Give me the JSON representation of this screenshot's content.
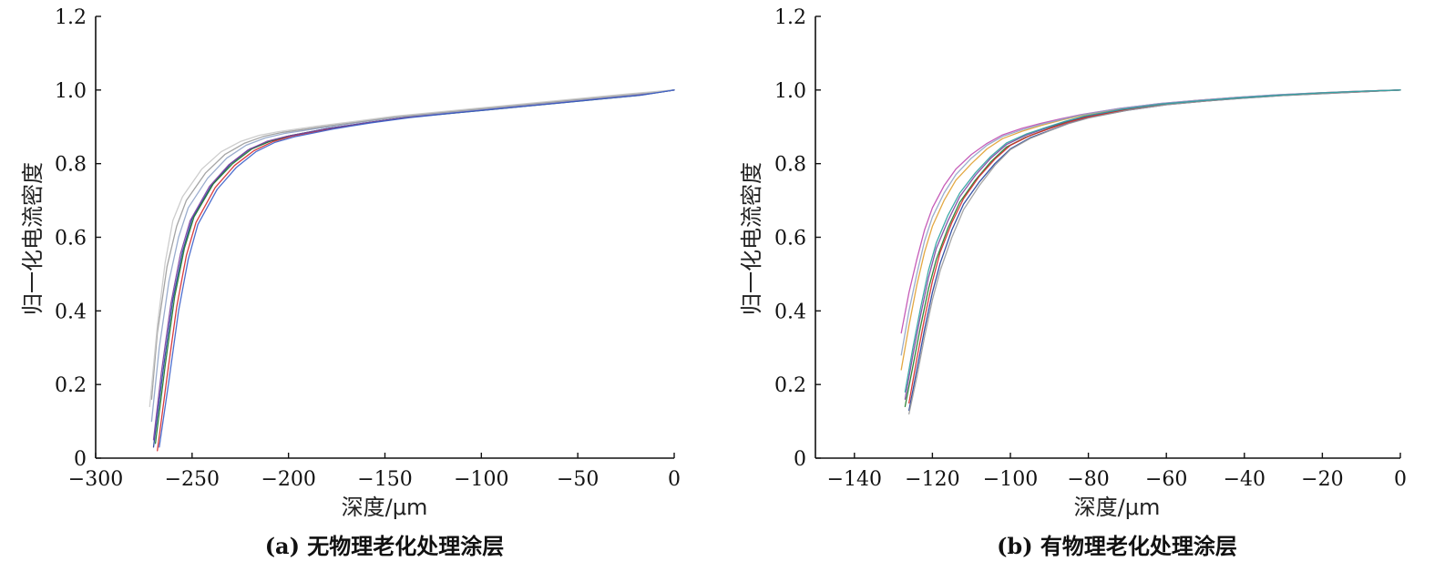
{
  "chart_data": [
    {
      "type": "line",
      "panel_id": "a",
      "caption": "(a) 无物理老化处理涂层",
      "title": "",
      "xlabel": "深度/μm",
      "ylabel": "归一化电流密度",
      "xlim": [
        -300,
        0
      ],
      "ylim": [
        0,
        1.2
      ],
      "xticks": [
        -300,
        -250,
        -200,
        -150,
        -100,
        -50,
        0
      ],
      "xtick_labels": [
        "−300",
        "−250",
        "−200",
        "−150",
        "−100",
        "−50",
        "0"
      ],
      "yticks": [
        0,
        0.2,
        0.4,
        0.6,
        0.8,
        1.0,
        1.2
      ],
      "ytick_labels": [
        "0",
        "0.2",
        "0.4",
        "0.6",
        "0.8",
        "1.0",
        "1.2"
      ],
      "grid": false,
      "legend": "none",
      "series": [
        {
          "color": "#1f3f9a",
          "x": [
            -270,
            -265,
            -260,
            -255,
            -250,
            -240,
            -230,
            -220,
            -210,
            -200,
            -180,
            -160,
            -140,
            -120,
            -100,
            -80,
            -60,
            -40,
            -20,
            0
          ],
          "y": [
            0.03,
            0.24,
            0.43,
            0.56,
            0.65,
            0.74,
            0.8,
            0.84,
            0.86,
            0.875,
            0.895,
            0.91,
            0.925,
            0.935,
            0.945,
            0.955,
            0.965,
            0.975,
            0.985,
            1.0
          ]
        },
        {
          "color": "#d62728",
          "x": [
            -268,
            -263,
            -258,
            -253,
            -248,
            -238,
            -228,
            -218,
            -208,
            -198,
            -178,
            -158,
            -138,
            -118,
            -98,
            -78,
            -58,
            -38,
            -18,
            0
          ],
          "y": [
            0.02,
            0.22,
            0.41,
            0.55,
            0.64,
            0.735,
            0.795,
            0.835,
            0.86,
            0.875,
            0.895,
            0.912,
            0.926,
            0.936,
            0.946,
            0.956,
            0.966,
            0.976,
            0.986,
            1.0
          ]
        },
        {
          "color": "#1b7a2a",
          "x": [
            -269,
            -264,
            -259,
            -254,
            -249,
            -239,
            -229,
            -219,
            -209,
            -199,
            -179,
            -159,
            -139,
            -119,
            -99,
            -79,
            -59,
            -39,
            -19,
            0
          ],
          "y": [
            0.04,
            0.25,
            0.44,
            0.57,
            0.655,
            0.745,
            0.8,
            0.84,
            0.862,
            0.876,
            0.896,
            0.911,
            0.925,
            0.935,
            0.945,
            0.955,
            0.965,
            0.975,
            0.985,
            1.0
          ]
        },
        {
          "color": "#7b3fa0",
          "x": [
            -270,
            -266,
            -261,
            -256,
            -251,
            -241,
            -231,
            -221,
            -211,
            -201,
            -181,
            -161,
            -141,
            -121,
            -101,
            -81,
            -61,
            -41,
            -21,
            0
          ],
          "y": [
            0.05,
            0.23,
            0.42,
            0.555,
            0.645,
            0.738,
            0.797,
            0.837,
            0.861,
            0.874,
            0.894,
            0.91,
            0.924,
            0.935,
            0.945,
            0.955,
            0.965,
            0.975,
            0.985,
            1.0
          ]
        },
        {
          "color": "#8fa3c8",
          "x": [
            -271,
            -267,
            -262,
            -257,
            -252,
            -242,
            -232,
            -222,
            -212,
            -202,
            -182,
            -162,
            -142,
            -122,
            -102,
            -82,
            -62,
            -42,
            -22,
            0
          ],
          "y": [
            0.1,
            0.3,
            0.48,
            0.6,
            0.68,
            0.76,
            0.815,
            0.85,
            0.87,
            0.882,
            0.898,
            0.913,
            0.927,
            0.937,
            0.947,
            0.957,
            0.967,
            0.977,
            0.987,
            1.0
          ]
        },
        {
          "color": "#9a9a9a",
          "x": [
            -271,
            -268,
            -263,
            -258,
            -253,
            -243,
            -233,
            -223,
            -213,
            -203,
            -183,
            -163,
            -143,
            -123,
            -103,
            -83,
            -63,
            -43,
            -23,
            0
          ],
          "y": [
            0.16,
            0.34,
            0.52,
            0.63,
            0.7,
            0.775,
            0.825,
            0.855,
            0.874,
            0.885,
            0.9,
            0.914,
            0.928,
            0.938,
            0.948,
            0.958,
            0.968,
            0.978,
            0.988,
            1.0
          ]
        },
        {
          "color": "#c8c8c8",
          "x": [
            -272,
            -268,
            -264,
            -260,
            -255,
            -245,
            -235,
            -225,
            -215,
            -205,
            -185,
            -165,
            -145,
            -125,
            -105,
            -85,
            -65,
            -45,
            -25,
            0
          ],
          "y": [
            0.14,
            0.36,
            0.53,
            0.645,
            0.71,
            0.785,
            0.832,
            0.86,
            0.877,
            0.887,
            0.902,
            0.915,
            0.929,
            0.939,
            0.949,
            0.959,
            0.969,
            0.979,
            0.989,
            1.0
          ]
        },
        {
          "color": "#3a5ec9",
          "x": [
            -267,
            -262,
            -257,
            -252,
            -247,
            -237,
            -227,
            -217,
            -207,
            -197,
            -177,
            -157,
            -137,
            -117,
            -97,
            -77,
            -57,
            -37,
            -17,
            0
          ],
          "y": [
            0.03,
            0.21,
            0.4,
            0.54,
            0.635,
            0.73,
            0.79,
            0.832,
            0.858,
            0.873,
            0.894,
            0.911,
            0.925,
            0.936,
            0.946,
            0.956,
            0.966,
            0.976,
            0.986,
            1.0
          ]
        }
      ]
    },
    {
      "type": "line",
      "panel_id": "b",
      "caption": "(b) 有物理老化处理涂层",
      "title": "",
      "xlabel": "深度/μm",
      "ylabel": "归一化电流密度",
      "xlim": [
        -150,
        0
      ],
      "ylim": [
        0,
        1.2
      ],
      "xticks": [
        -140,
        -120,
        -100,
        -80,
        -60,
        -40,
        -20,
        0
      ],
      "xtick_labels": [
        "−140",
        "−120",
        "−100",
        "−80",
        "−60",
        "−40",
        "−20",
        "0"
      ],
      "yticks": [
        0,
        0.2,
        0.4,
        0.6,
        0.8,
        1.0,
        1.2
      ],
      "ytick_labels": [
        "0",
        "0.2",
        "0.4",
        "0.6",
        "0.8",
        "1.0",
        "1.2"
      ],
      "grid": false,
      "legend": "none",
      "series": [
        {
          "color": "#1f3f9a",
          "x": [
            -126,
            -124,
            -122,
            -120,
            -118,
            -115,
            -112,
            -108,
            -104,
            -100,
            -95,
            -90,
            -85,
            -80,
            -70,
            -60,
            -50,
            -40,
            -30,
            -20,
            -10,
            0
          ],
          "y": [
            0.13,
            0.24,
            0.35,
            0.45,
            0.53,
            0.62,
            0.69,
            0.75,
            0.8,
            0.84,
            0.87,
            0.89,
            0.91,
            0.925,
            0.945,
            0.96,
            0.97,
            0.978,
            0.985,
            0.99,
            0.995,
            1.0
          ]
        },
        {
          "color": "#1b7a2a",
          "x": [
            -127,
            -125,
            -123,
            -121,
            -119,
            -116,
            -113,
            -109,
            -105,
            -101,
            -96,
            -91,
            -86,
            -81,
            -71,
            -61,
            -51,
            -41,
            -31,
            -21,
            -11,
            0
          ],
          "y": [
            0.14,
            0.25,
            0.36,
            0.46,
            0.54,
            0.625,
            0.695,
            0.755,
            0.805,
            0.845,
            0.872,
            0.892,
            0.912,
            0.926,
            0.946,
            0.961,
            0.971,
            0.978,
            0.985,
            0.99,
            0.996,
            1.0
          ]
        },
        {
          "color": "#d62728",
          "x": [
            -126,
            -124,
            -122,
            -120,
            -118,
            -115,
            -112,
            -108,
            -104,
            -100,
            -95,
            -90,
            -85,
            -80,
            -70,
            -60,
            -50,
            -40,
            -30,
            -20,
            -10,
            0
          ],
          "y": [
            0.15,
            0.27,
            0.38,
            0.48,
            0.56,
            0.64,
            0.705,
            0.765,
            0.812,
            0.85,
            0.876,
            0.895,
            0.913,
            0.927,
            0.947,
            0.961,
            0.97,
            0.979,
            0.986,
            0.991,
            0.995,
            1.0
          ]
        },
        {
          "color": "#7b3fa0",
          "x": [
            -127,
            -125,
            -123,
            -121,
            -119,
            -116,
            -113,
            -109,
            -105,
            -101,
            -96,
            -91,
            -86,
            -81,
            -71,
            -61,
            -51,
            -41,
            -31,
            -21,
            -11,
            0
          ],
          "y": [
            0.16,
            0.28,
            0.39,
            0.49,
            0.57,
            0.645,
            0.71,
            0.768,
            0.815,
            0.852,
            0.877,
            0.896,
            0.914,
            0.928,
            0.948,
            0.962,
            0.971,
            0.979,
            0.986,
            0.992,
            0.996,
            1.0
          ]
        },
        {
          "color": "#e0a030",
          "x": [
            -128,
            -126,
            -124,
            -122,
            -120,
            -117,
            -114,
            -110,
            -106,
            -102,
            -97,
            -92,
            -87,
            -82,
            -72,
            -62,
            -52,
            -42,
            -32,
            -22,
            -12,
            0
          ],
          "y": [
            0.24,
            0.36,
            0.47,
            0.56,
            0.63,
            0.7,
            0.755,
            0.8,
            0.84,
            0.868,
            0.888,
            0.904,
            0.918,
            0.93,
            0.949,
            0.962,
            0.972,
            0.98,
            0.986,
            0.992,
            0.996,
            1.0
          ]
        },
        {
          "color": "#c04ab0",
          "x": [
            -128,
            -126,
            -124,
            -122,
            -120,
            -117,
            -114,
            -110,
            -106,
            -102,
            -97,
            -92,
            -87,
            -82,
            -72,
            -62,
            -52,
            -42,
            -32,
            -22,
            -12,
            0
          ],
          "y": [
            0.34,
            0.45,
            0.54,
            0.62,
            0.68,
            0.74,
            0.785,
            0.825,
            0.855,
            0.878,
            0.896,
            0.91,
            0.922,
            0.933,
            0.95,
            0.963,
            0.972,
            0.98,
            0.987,
            0.992,
            0.996,
            1.0
          ]
        },
        {
          "color": "#8fa3c8",
          "x": [
            -128,
            -126,
            -124,
            -122,
            -120,
            -117,
            -114,
            -110,
            -106,
            -102,
            -97,
            -92,
            -87,
            -82,
            -72,
            -62,
            -52,
            -42,
            -32,
            -22,
            -12,
            0
          ],
          "y": [
            0.28,
            0.4,
            0.5,
            0.59,
            0.655,
            0.72,
            0.77,
            0.815,
            0.85,
            0.874,
            0.892,
            0.907,
            0.92,
            0.932,
            0.95,
            0.963,
            0.972,
            0.98,
            0.987,
            0.992,
            0.996,
            1.0
          ]
        },
        {
          "color": "#9a9a9a",
          "x": [
            -126,
            -124,
            -122,
            -120,
            -118,
            -115,
            -112,
            -108,
            -104,
            -100,
            -95,
            -90,
            -85,
            -80,
            -70,
            -60,
            -50,
            -40,
            -30,
            -20,
            -10,
            0
          ],
          "y": [
            0.12,
            0.22,
            0.33,
            0.43,
            0.51,
            0.6,
            0.675,
            0.74,
            0.795,
            0.838,
            0.868,
            0.889,
            0.909,
            0.924,
            0.945,
            0.96,
            0.97,
            0.978,
            0.985,
            0.99,
            0.995,
            1.0
          ]
        },
        {
          "color": "#2aa0a0",
          "x": [
            -127,
            -125,
            -123,
            -121,
            -119,
            -116,
            -113,
            -109,
            -105,
            -101,
            -96,
            -91,
            -86,
            -81,
            -71,
            -61,
            -51,
            -41,
            -31,
            -21,
            -11,
            0
          ],
          "y": [
            0.18,
            0.3,
            0.41,
            0.51,
            0.585,
            0.66,
            0.72,
            0.775,
            0.82,
            0.856,
            0.88,
            0.898,
            0.915,
            0.929,
            0.948,
            0.962,
            0.971,
            0.979,
            0.986,
            0.992,
            0.996,
            1.0
          ]
        }
      ]
    }
  ]
}
